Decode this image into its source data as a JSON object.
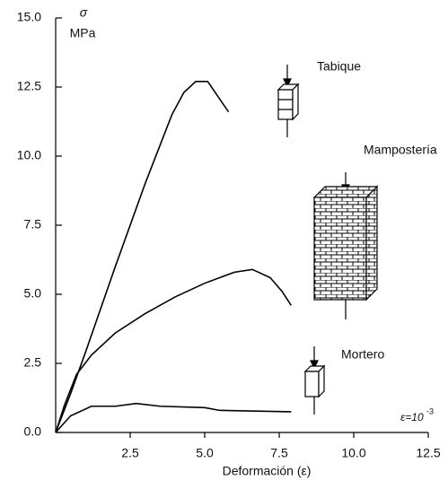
{
  "chart_data": {
    "type": "line",
    "y_label_symbol": "σ",
    "y_label_unit": "MPa",
    "x_label": "Deformación (ε)",
    "annotation": {
      "text": "ε=10",
      "exponent": "-3"
    },
    "xlim": [
      0,
      12.5
    ],
    "ylim": [
      0,
      15
    ],
    "xticks": [
      2.5,
      {
        "value": 5,
        "label": "5.0"
      },
      {
        "value": 7.5,
        "label": "7.5"
      },
      {
        "value": 10,
        "label": "10.0"
      },
      {
        "value": 12.5,
        "label": "12.5"
      }
    ],
    "yticks": [
      {
        "value": 0,
        "label": "0.0"
      },
      {
        "value": 2.5,
        "label": "2.5"
      },
      {
        "value": 5,
        "label": "5.0"
      },
      {
        "value": 7.5,
        "label": "7.5"
      },
      {
        "value": 10,
        "label": "10.0"
      },
      {
        "value": 12.5,
        "label": "12.5"
      },
      {
        "value": 15,
        "label": "15.0"
      }
    ],
    "series": [
      {
        "name": "Tabique",
        "color": "#000000",
        "x": [
          0,
          0.5,
          1,
          2,
          3,
          3.9,
          4.3,
          4.7,
          5.1,
          5.8
        ],
        "values": [
          0,
          1.4,
          2.9,
          6.0,
          9.0,
          11.5,
          12.3,
          12.7,
          12.7,
          11.6
        ]
      },
      {
        "name": "Mampostería",
        "color": "#000000",
        "x": [
          0,
          0.3,
          0.7,
          1.2,
          2,
          3,
          4,
          5,
          6,
          6.6,
          7.2,
          7.6,
          7.9
        ],
        "values": [
          0,
          1.0,
          2.1,
          2.8,
          3.6,
          4.3,
          4.9,
          5.4,
          5.8,
          5.9,
          5.6,
          5.1,
          4.6
        ]
      },
      {
        "name": "Mortero",
        "color": "#000000",
        "x": [
          0,
          0.5,
          1.2,
          2,
          2.7,
          3.5,
          5,
          5.5,
          7.9
        ],
        "values": [
          0,
          0.6,
          0.95,
          0.95,
          1.05,
          0.95,
          0.9,
          0.8,
          0.75
        ]
      }
    ]
  }
}
